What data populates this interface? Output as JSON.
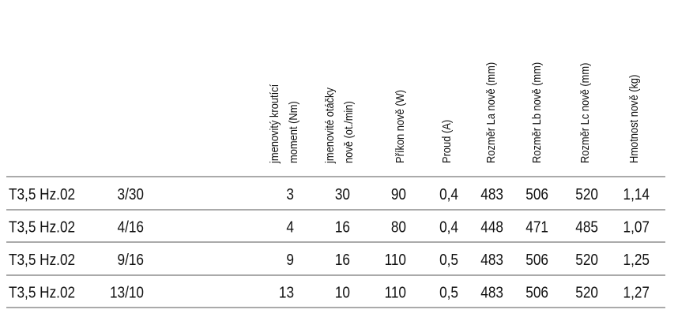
{
  "table": {
    "headers": [
      [
        "jmenovitý kroutící",
        "moment (Nm)"
      ],
      [
        "jmenovité otáčky",
        "nově (ot./min)"
      ],
      [
        "Příkon nově (W)"
      ],
      [
        "Proud (A)"
      ],
      [
        "Rozměr La nově (mm)"
      ],
      [
        "Rozměr Lb nově (mm)"
      ],
      [
        "Rozměr Lc nově (mm)"
      ],
      [
        "Hmotnost nově (kg)"
      ]
    ],
    "rows": [
      [
        [
          "T3,5 Hz.02",
          "3/30"
        ],
        "3",
        "30",
        "90",
        "0,4",
        "483",
        "506",
        "520",
        "1,14"
      ],
      [
        [
          "T3,5 Hz.02",
          "4/16"
        ],
        "4",
        "16",
        "80",
        "0,4",
        "448",
        "471",
        "485",
        "1,07"
      ],
      [
        [
          "T3,5 Hz.02",
          "9/16"
        ],
        "9",
        "16",
        "110",
        "0,5",
        "483",
        "506",
        "520",
        "1,25"
      ],
      [
        [
          "T3,5 Hz.02",
          "13/10"
        ],
        "13",
        "10",
        "110",
        "0,5",
        "483",
        "506",
        "520",
        "1,27"
      ]
    ]
  }
}
